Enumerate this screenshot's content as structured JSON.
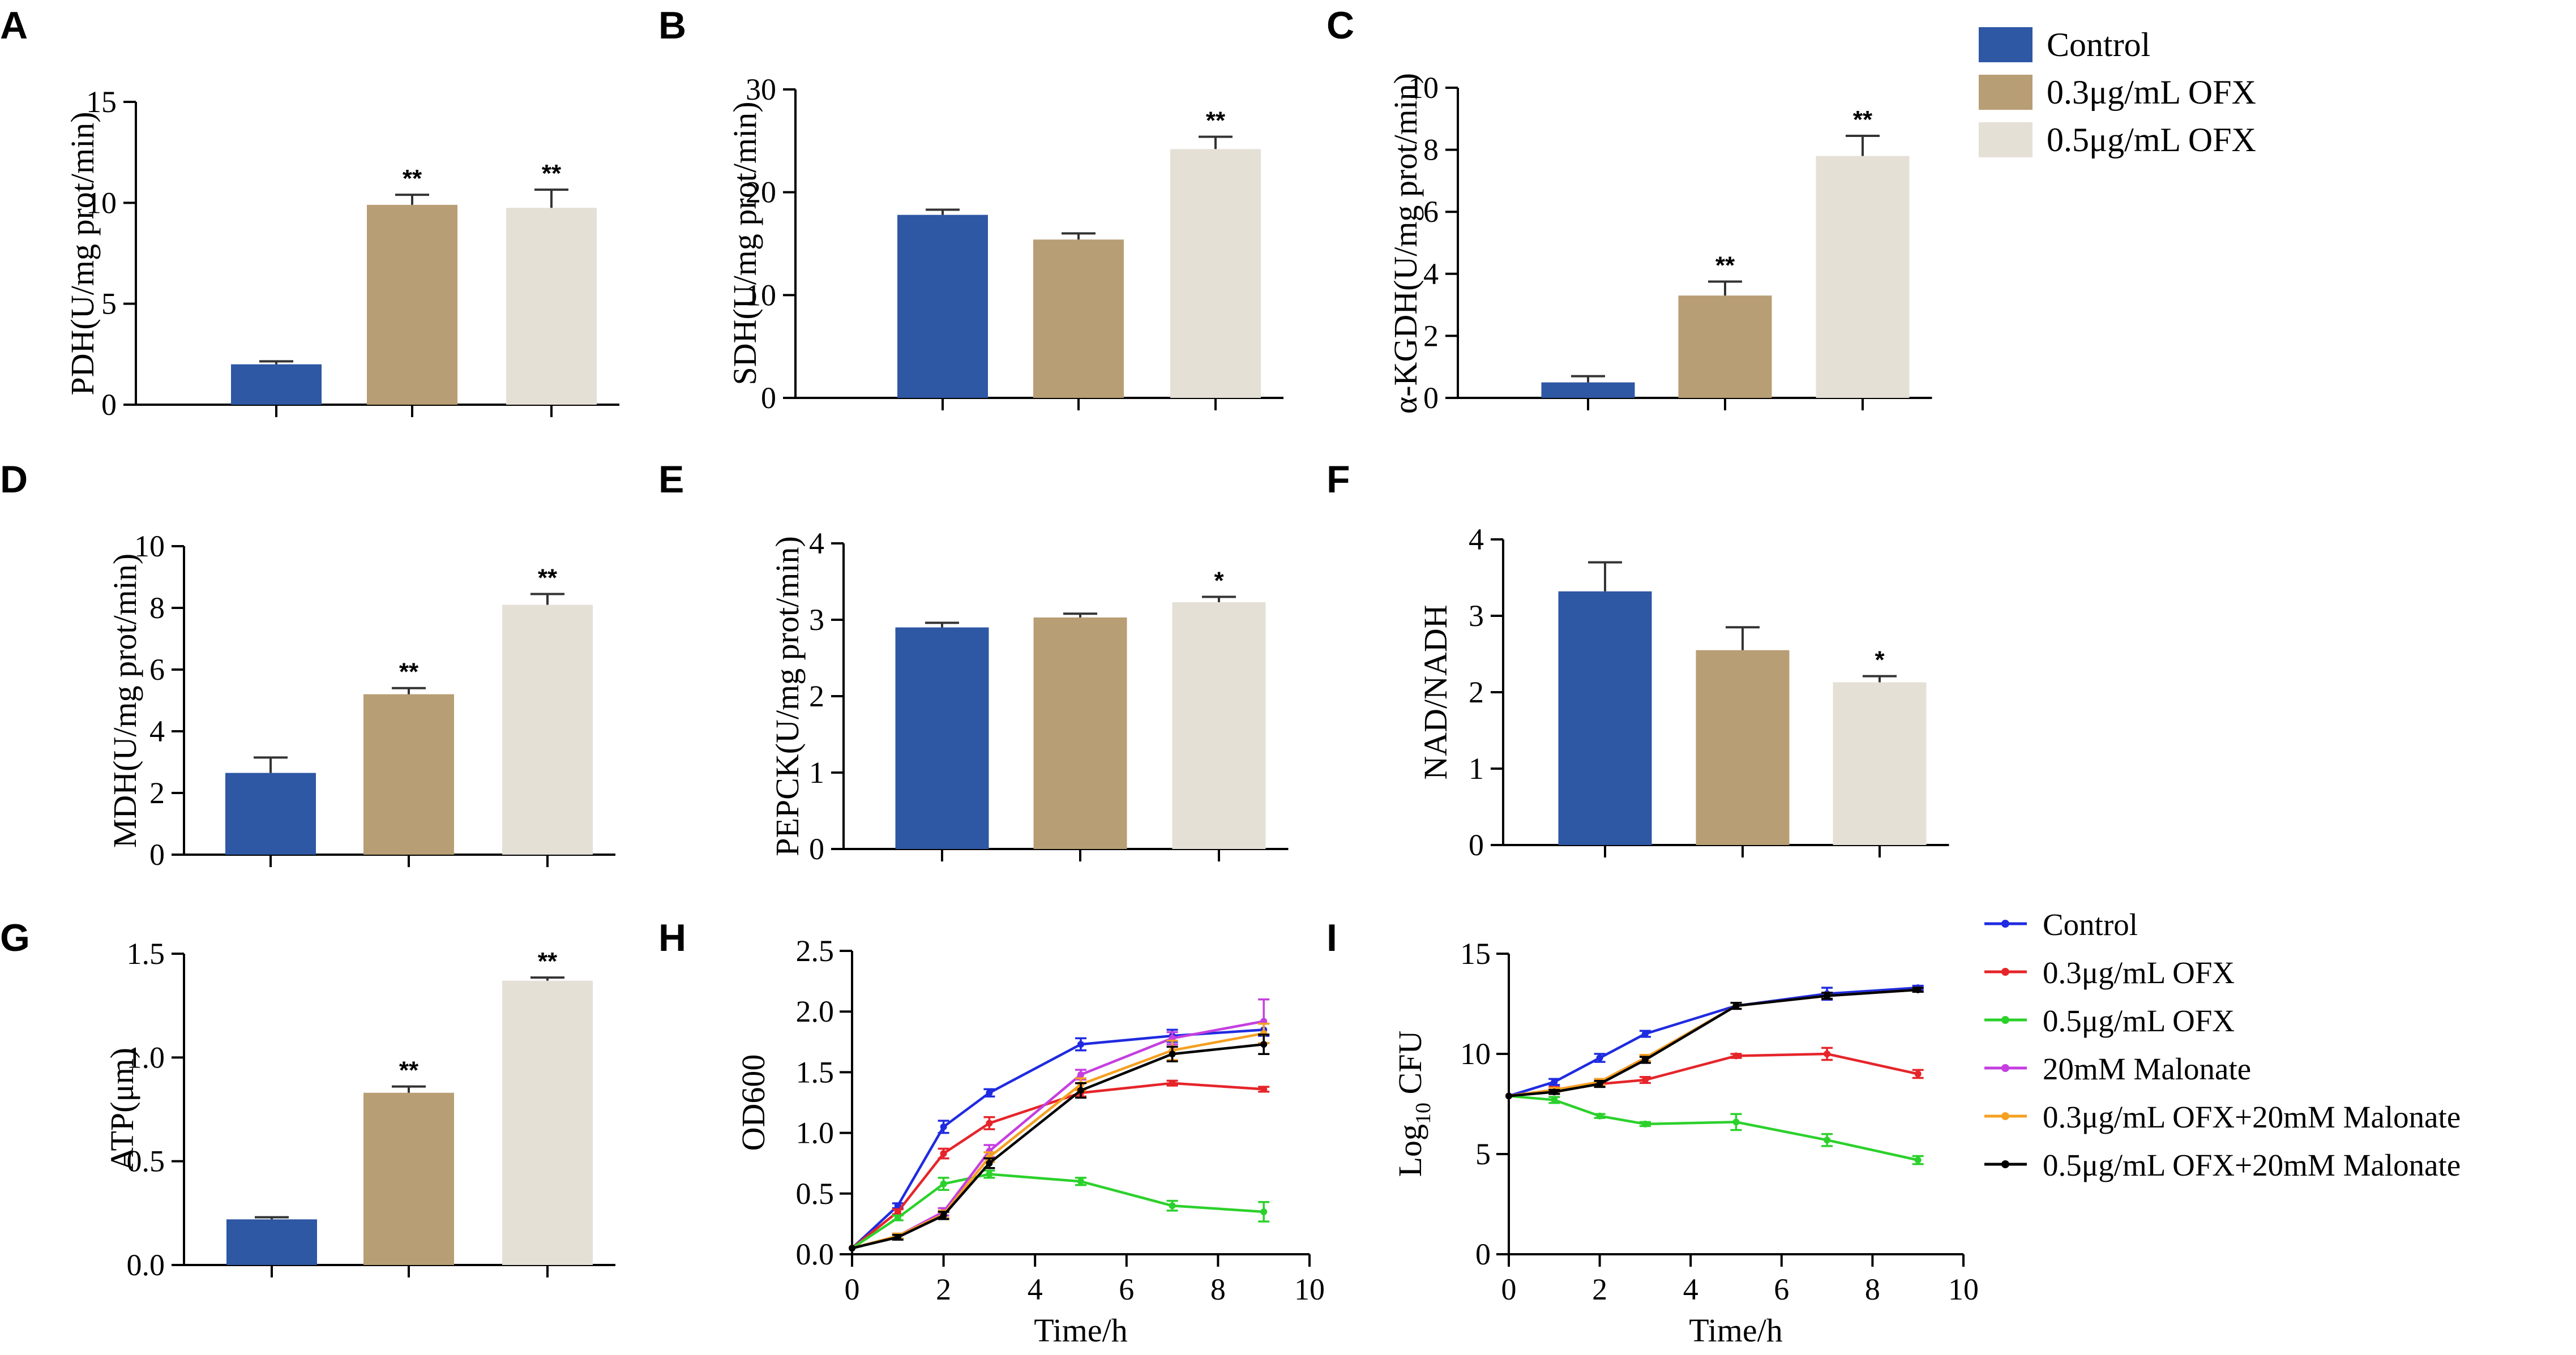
{
  "figure": {
    "bar_colors": [
      "#2e57a4",
      "#b89e74",
      "#e5e0d6"
    ],
    "line_colors": [
      "#1f2be0",
      "#e5252a",
      "#2bd12b",
      "#c53fe0",
      "#f5a021",
      "#000000"
    ]
  },
  "bar_legend": {
    "entries": [
      "Control",
      "0.3μg/mL OFX",
      "0.5μg/mL OFX"
    ]
  },
  "line_legend": {
    "entries": [
      "Control",
      "0.3μg/mL OFX",
      "0.5μg/mL OFX",
      "20mM Malonate",
      "0.3μg/mL OFX+20mM Malonate",
      "0.5μg/mL OFX+20mM Malonate"
    ]
  },
  "chart_data": [
    {
      "panel": "A",
      "type": "bar",
      "categories": [
        "Control",
        "0.3μg/mL OFX",
        "0.5μg/mL OFX"
      ],
      "values": [
        2.0,
        9.9,
        9.75
      ],
      "errors": [
        0.15,
        0.5,
        0.9
      ],
      "significance": [
        "",
        "**",
        "**"
      ],
      "ylabel": "PDH(U/mg prot/min)",
      "ylim": [
        0,
        15
      ],
      "yticks": [
        0,
        5,
        10,
        15
      ],
      "ytick_labels": [
        "0",
        "5",
        "10",
        "15"
      ]
    },
    {
      "panel": "B",
      "type": "bar",
      "categories": [
        "Control",
        "0.3μg/mL OFX",
        "0.5μg/mL OFX"
      ],
      "values": [
        17.8,
        15.4,
        24.2
      ],
      "errors": [
        0.5,
        0.6,
        1.2
      ],
      "significance": [
        "",
        "",
        "**"
      ],
      "ylabel": "SDH(U/mg prot/min)",
      "ylim": [
        0,
        30
      ],
      "yticks": [
        0,
        10,
        20,
        30
      ],
      "ytick_labels": [
        "0",
        "10",
        "20",
        "30"
      ]
    },
    {
      "panel": "C",
      "type": "bar",
      "categories": [
        "Control",
        "0.3μg/mL OFX",
        "0.5μg/mL OFX"
      ],
      "values": [
        0.5,
        3.3,
        7.8
      ],
      "errors": [
        0.2,
        0.45,
        0.65
      ],
      "significance": [
        "",
        "**",
        "**"
      ],
      "ylabel": "α-KGDH(U/mg prot/min)",
      "ylim": [
        0,
        10
      ],
      "yticks": [
        0,
        2,
        4,
        6,
        8,
        10
      ],
      "ytick_labels": [
        "0",
        "2",
        "4",
        "6",
        "8",
        "10"
      ]
    },
    {
      "panel": "D",
      "type": "bar",
      "categories": [
        "Control",
        "0.3μg/mL OFX",
        "0.5μg/mL OFX"
      ],
      "values": [
        2.65,
        5.2,
        8.1
      ],
      "errors": [
        0.5,
        0.2,
        0.35
      ],
      "significance": [
        "",
        "**",
        "**"
      ],
      "ylabel": "MDH(U/mg prot/min)",
      "ylim": [
        0,
        10
      ],
      "yticks": [
        0,
        2,
        4,
        6,
        8,
        10
      ],
      "ytick_labels": [
        "0",
        "2",
        "4",
        "6",
        "8",
        "10"
      ]
    },
    {
      "panel": "E",
      "type": "bar",
      "categories": [
        "Control",
        "0.3μg/mL OFX",
        "0.5μg/mL OFX"
      ],
      "values": [
        2.9,
        3.03,
        3.23
      ],
      "errors": [
        0.06,
        0.05,
        0.07
      ],
      "significance": [
        "",
        "",
        "*"
      ],
      "ylabel": "PEPCK(U/mg prot/min)",
      "ylim": [
        0,
        4
      ],
      "yticks": [
        0,
        1,
        2,
        3,
        4
      ],
      "ytick_labels": [
        "0",
        "1",
        "2",
        "3",
        "4"
      ]
    },
    {
      "panel": "F",
      "type": "bar",
      "categories": [
        "Control",
        "0.3μg/mL OFX",
        "0.5μg/mL OFX"
      ],
      "values": [
        3.32,
        2.55,
        2.13
      ],
      "errors": [
        0.38,
        0.3,
        0.08
      ],
      "significance": [
        "",
        "",
        "*"
      ],
      "ylabel": "NAD/NADH",
      "ylim": [
        0,
        4
      ],
      "yticks": [
        0,
        1,
        2,
        3,
        4
      ],
      "ytick_labels": [
        "0",
        "1",
        "2",
        "3",
        "4"
      ]
    },
    {
      "panel": "G",
      "type": "bar",
      "categories": [
        "Control",
        "0.3μg/mL OFX",
        "0.5μg/mL OFX"
      ],
      "values": [
        0.22,
        0.83,
        1.37
      ],
      "errors": [
        0.01,
        0.03,
        0.015
      ],
      "significance": [
        "",
        "**",
        "**"
      ],
      "ylabel": "ATP(μm)",
      "ylim": [
        0,
        1.5
      ],
      "yticks": [
        0,
        0.5,
        1.0,
        1.5
      ],
      "ytick_labels": [
        "0.0",
        "0.5",
        "1.0",
        "1.5"
      ]
    },
    {
      "panel": "H",
      "type": "line",
      "xlabel": "Time/h",
      "ylabel": "OD600",
      "xlim": [
        0,
        10
      ],
      "ylim": [
        0,
        2.5
      ],
      "xticks": [
        0,
        2,
        4,
        6,
        8,
        10
      ],
      "xtick_labels": [
        "0",
        "2",
        "4",
        "6",
        "8",
        "10"
      ],
      "yticks": [
        0,
        0.5,
        1.0,
        1.5,
        2.0,
        2.5
      ],
      "ytick_labels": [
        "0.0",
        "0.5",
        "1.0",
        "1.5",
        "2.0",
        "2.5"
      ],
      "x": [
        0,
        1,
        2,
        3,
        5,
        7,
        9
      ],
      "series": [
        {
          "name": "Control",
          "values": [
            0.05,
            0.4,
            1.05,
            1.33,
            1.73,
            1.8,
            1.85
          ],
          "errors": [
            0,
            0.02,
            0.05,
            0.03,
            0.05,
            0.05,
            0.05
          ]
        },
        {
          "name": "0.3μg/mL OFX",
          "values": [
            0.05,
            0.35,
            0.83,
            1.08,
            1.33,
            1.41,
            1.36
          ],
          "errors": [
            0,
            0.02,
            0.04,
            0.05,
            0.03,
            0.02,
            0.02
          ]
        },
        {
          "name": "0.5μg/mL OFX",
          "values": [
            0.05,
            0.3,
            0.58,
            0.66,
            0.6,
            0.4,
            0.35
          ],
          "errors": [
            0,
            0.02,
            0.05,
            0.03,
            0.03,
            0.04,
            0.08
          ]
        },
        {
          "name": "20mM Malonate",
          "values": [
            0.05,
            0.15,
            0.35,
            0.85,
            1.48,
            1.78,
            1.92
          ],
          "errors": [
            0,
            0.02,
            0.03,
            0.05,
            0.04,
            0.05,
            0.18
          ]
        },
        {
          "name": "0.3μg/mL OFX+20mM Malonate",
          "values": [
            0.05,
            0.15,
            0.33,
            0.8,
            1.4,
            1.68,
            1.82
          ],
          "errors": [
            0,
            0.02,
            0.03,
            0.04,
            0.05,
            0.08,
            0.08
          ]
        },
        {
          "name": "0.5μg/mL OFX+20mM Malonate",
          "values": [
            0.05,
            0.14,
            0.32,
            0.75,
            1.35,
            1.65,
            1.73
          ],
          "errors": [
            0,
            0.02,
            0.03,
            0.04,
            0.06,
            0.06,
            0.08
          ]
        }
      ]
    },
    {
      "panel": "I",
      "type": "line",
      "xlabel": "Time/h",
      "ylabel": "Log10 CFU",
      "xlim": [
        0,
        10
      ],
      "ylim": [
        0,
        15
      ],
      "xticks": [
        0,
        2,
        4,
        6,
        8,
        10
      ],
      "xtick_labels": [
        "0",
        "2",
        "4",
        "6",
        "8",
        "10"
      ],
      "yticks": [
        0,
        5,
        10,
        15
      ],
      "ytick_labels": [
        "0",
        "5",
        "10",
        "15"
      ],
      "x": [
        0,
        1,
        2,
        3,
        5,
        7,
        9
      ],
      "series": [
        {
          "name": "Control",
          "values": [
            7.9,
            8.6,
            9.8,
            11.0,
            12.4,
            13.0,
            13.3
          ],
          "errors": [
            0,
            0.15,
            0.2,
            0.15,
            0.15,
            0.3,
            0.1
          ]
        },
        {
          "name": "0.3μg/mL OFX",
          "values": [
            7.9,
            8.2,
            8.5,
            8.7,
            9.9,
            10.0,
            9.0
          ],
          "errors": [
            0,
            0.15,
            0.15,
            0.15,
            0.1,
            0.3,
            0.2
          ]
        },
        {
          "name": "0.5μg/mL OFX",
          "values": [
            7.9,
            7.7,
            6.9,
            6.5,
            6.6,
            5.7,
            4.7
          ],
          "errors": [
            0,
            0.15,
            0.1,
            0.1,
            0.4,
            0.3,
            0.2
          ]
        },
        {
          "name": "20mM Malonate",
          "values": [
            7.9,
            8.2,
            8.6,
            9.8,
            12.4,
            12.9,
            13.2
          ],
          "errors": [
            0,
            0.1,
            0.15,
            0.15,
            0.15,
            0.15,
            0.1
          ]
        },
        {
          "name": "0.3μg/mL OFX+20mM Malonate",
          "values": [
            7.9,
            8.2,
            8.6,
            9.8,
            12.4,
            12.9,
            13.2
          ],
          "errors": [
            0,
            0.1,
            0.15,
            0.15,
            0.15,
            0.15,
            0.1
          ]
        },
        {
          "name": "0.5μg/mL OFX+20mM Malonate",
          "values": [
            7.9,
            8.1,
            8.5,
            9.7,
            12.4,
            12.9,
            13.2
          ],
          "errors": [
            0,
            0.1,
            0.15,
            0.15,
            0.15,
            0.15,
            0.1
          ]
        }
      ]
    }
  ]
}
